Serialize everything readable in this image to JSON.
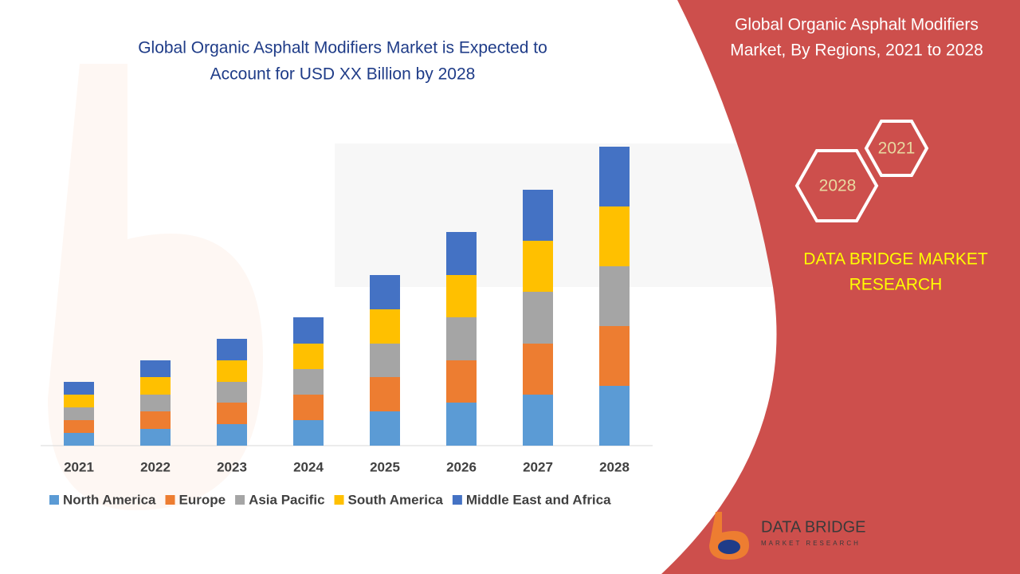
{
  "chart_data": {
    "type": "stacked_bar",
    "title": [
      "Global Organic Asphalt Modifiers Market is Expected to",
      "Account for USD XX Billion by 2028"
    ],
    "categories": [
      "2021",
      "2022",
      "2023",
      "2024",
      "2025",
      "2026",
      "2027",
      "2028"
    ],
    "ylim": [
      0,
      400
    ],
    "series": [
      {
        "name": "North America",
        "color": "#5b9bd5",
        "values": [
          16,
          21,
          27,
          32,
          43,
          54,
          64,
          75
        ]
      },
      {
        "name": "Europe",
        "color": "#ed7d31",
        "values": [
          16,
          22,
          27,
          32,
          43,
          53,
          64,
          75
        ]
      },
      {
        "name": "Asia Pacific",
        "color": "#a5a5a5",
        "values": [
          16,
          21,
          26,
          32,
          42,
          54,
          65,
          75
        ]
      },
      {
        "name": "South America",
        "color": "#ffc000",
        "values": [
          16,
          22,
          27,
          32,
          43,
          53,
          64,
          75
        ]
      },
      {
        "name": "Middle East and Africa",
        "color": "#4472c4",
        "values": [
          16,
          21,
          27,
          33,
          43,
          54,
          64,
          75
        ]
      }
    ],
    "legend": "bottom"
  },
  "panel": {
    "title": [
      "Global Organic Asphalt Modifiers",
      "Market, By Regions, 2021 to 2028"
    ],
    "hexagons": [
      "2021",
      "2028"
    ],
    "brand": [
      "DATA BRIDGE MARKET",
      "RESEARCH"
    ],
    "logo": [
      "DATA BRIDGE",
      "MARKET RESEARCH"
    ]
  }
}
